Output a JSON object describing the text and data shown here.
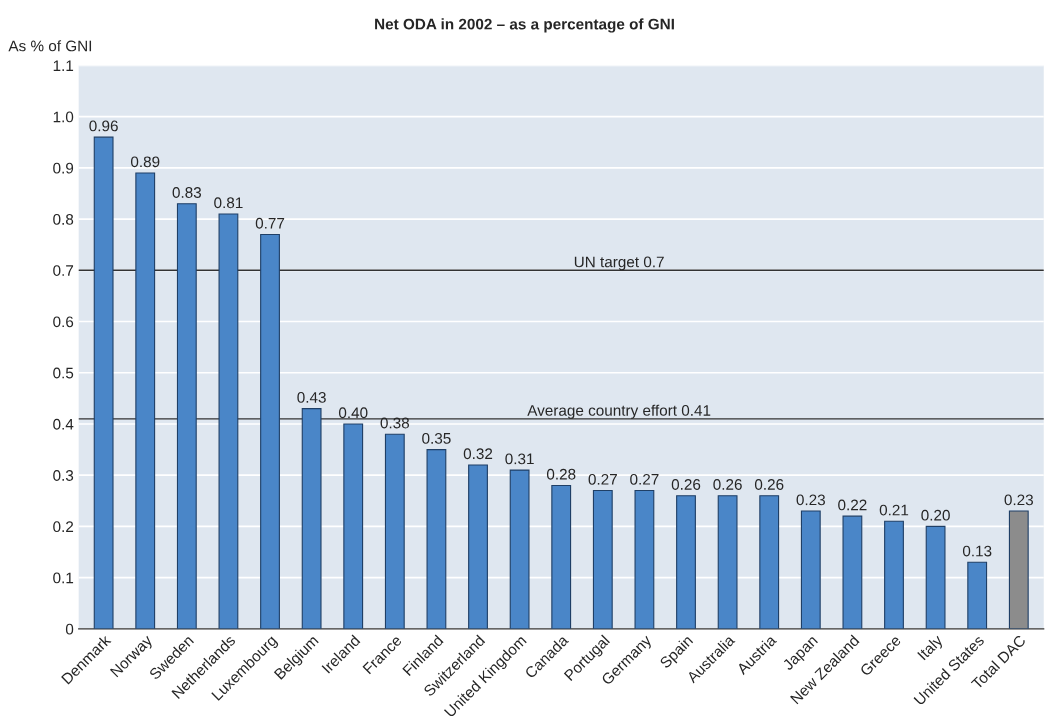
{
  "chart_data": {
    "type": "bar",
    "title": "Net ODA in 2002 – as a percentage of GNI",
    "ylabel": "As % of GNI",
    "categories": [
      "Denmark",
      "Norway",
      "Sweden",
      "Netherlands",
      "Luxembourg",
      "Belgium",
      "Ireland",
      "France",
      "Finland",
      "Switzerland",
      "United Kingdom",
      "Canada",
      "Portugal",
      "Germany",
      "Spain",
      "Australia",
      "Austria",
      "Japan",
      "New Zealand",
      "Greece",
      "Italy",
      "United States",
      "Total DAC"
    ],
    "values": [
      0.96,
      0.89,
      0.83,
      0.81,
      0.77,
      0.43,
      0.4,
      0.38,
      0.35,
      0.32,
      0.31,
      0.28,
      0.27,
      0.27,
      0.26,
      0.26,
      0.26,
      0.23,
      0.22,
      0.21,
      0.2,
      0.13,
      0.23
    ],
    "value_labels": [
      "0.96",
      "0.89",
      "0.83",
      "0.81",
      "0.77",
      "0.43",
      "0.40",
      "0.38",
      "0.35",
      "0.32",
      "0.31",
      "0.28",
      "0.27",
      "0.27",
      "0.26",
      "0.26",
      "0.26",
      "0.23",
      "0.22",
      "0.21",
      "0.20",
      "0.13",
      "0.23"
    ],
    "colors": [
      "#4a86c8",
      "#4a86c8",
      "#4a86c8",
      "#4a86c8",
      "#4a86c8",
      "#4a86c8",
      "#4a86c8",
      "#4a86c8",
      "#4a86c8",
      "#4a86c8",
      "#4a86c8",
      "#4a86c8",
      "#4a86c8",
      "#4a86c8",
      "#4a86c8",
      "#4a86c8",
      "#4a86c8",
      "#4a86c8",
      "#4a86c8",
      "#4a86c8",
      "#4a86c8",
      "#4a86c8",
      "#8c8c8c"
    ],
    "ylim": [
      0,
      1.1
    ],
    "yticks": [
      0,
      0.1,
      0.2,
      0.3,
      0.4,
      0.5,
      0.6,
      0.7,
      0.8,
      0.9,
      {
        "value": 1.0,
        "label": "1.0"
      },
      1.1
    ],
    "ref_lines": [
      {
        "axis": "y",
        "value": 0.7,
        "label": "UN target 0.7",
        "color": "#333333"
      },
      {
        "axis": "y",
        "value": 0.41,
        "label": "Average country effort 0.41",
        "color": "#333333"
      }
    ],
    "grid": "y",
    "legend": false
  }
}
